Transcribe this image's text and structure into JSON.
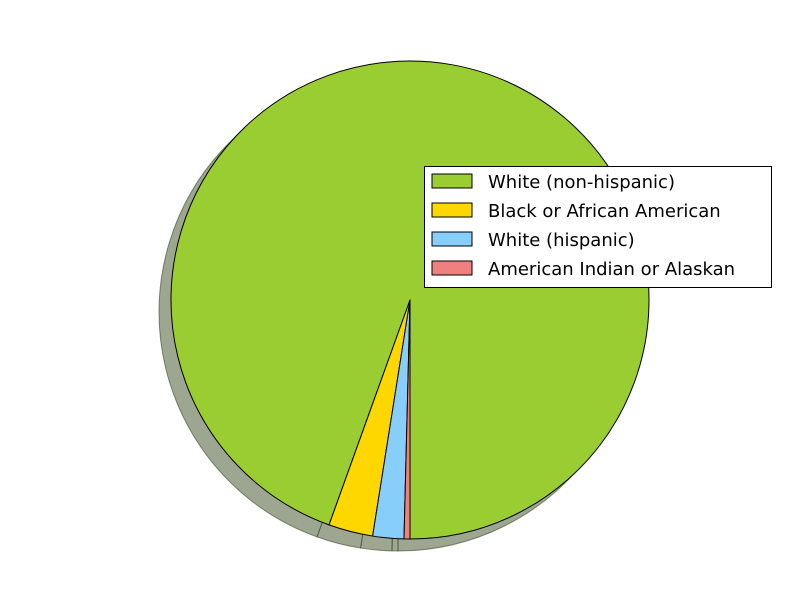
{
  "chart_data": {
    "type": "pie",
    "title": "",
    "shadow": true,
    "start_angle_deg": 270,
    "direction": "counterclockwise",
    "legend_placement": "right",
    "slices": [
      {
        "label": "White (non-hispanic)",
        "value": 94.5,
        "color": "#9acd32"
      },
      {
        "label": "Black or African American",
        "value": 3.0,
        "color": "#ffd700"
      },
      {
        "label": "White (hispanic)",
        "value": 2.1,
        "color": "#87cefa"
      },
      {
        "label": "American Indian or Alaskan",
        "value": 0.4,
        "color": "#f08080"
      }
    ]
  }
}
